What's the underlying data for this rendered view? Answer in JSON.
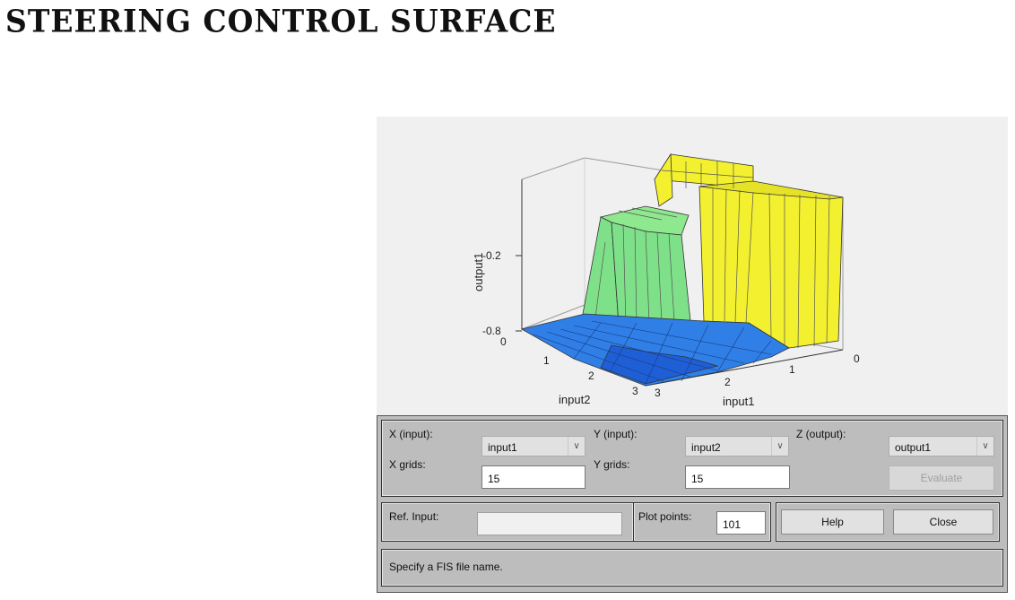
{
  "title": "STEERING CONTROL SURFACE",
  "plot": {
    "zlabel": "output1",
    "xlabel": "input1",
    "ylabel": "input2",
    "zticks": [
      "-0.2",
      "-0.8"
    ],
    "z_tick_low": "0",
    "input1_ticks": [
      "0",
      "1",
      "2",
      "3"
    ],
    "input2_ticks": [
      "1",
      "2",
      "3"
    ],
    "colors": {
      "blue": "#2f7fe6",
      "green": "#7fe08a",
      "yellow": "#f3f030"
    }
  },
  "controls": {
    "x_input_label": "X (input):",
    "x_input_value": "input1",
    "y_input_label": "Y (input):",
    "y_input_value": "input2",
    "z_output_label": "Z (output):",
    "z_output_value": "output1",
    "x_grids_label": "X grids:",
    "x_grids_value": "15",
    "y_grids_label": "Y grids:",
    "y_grids_value": "15",
    "evaluate_label": "Evaluate",
    "ref_input_label": "Ref. Input:",
    "plot_points_label": "Plot points:",
    "plot_points_value": "101",
    "help_label": "Help",
    "close_label": "Close",
    "status_text": "Specify a FIS file name."
  }
}
